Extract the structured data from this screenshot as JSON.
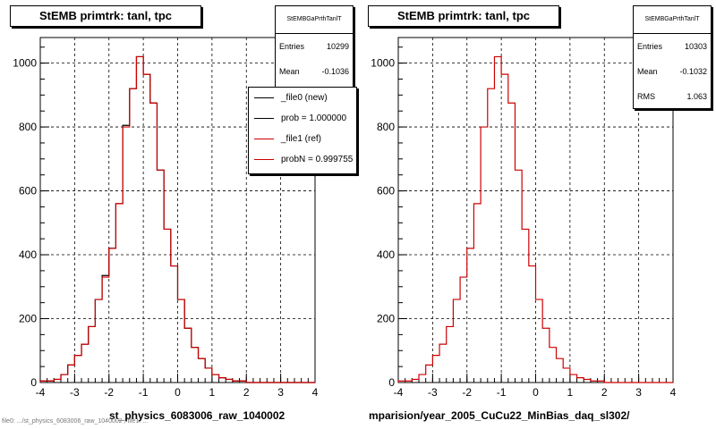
{
  "footer_note": "file0: .../st_physics_6083006_raw_1040002 ; file1: ...",
  "chart_data": [
    {
      "type": "histogram",
      "title": "StEMB primtrk: tanl, tpc",
      "xlabel": "st_physics_6083006_raw_1040002",
      "xlim": [
        -4,
        4
      ],
      "ylim": [
        0,
        1080
      ],
      "xticks": [
        "-4",
        "-3",
        "-2",
        "-1",
        "0",
        "1",
        "2",
        "3",
        "4"
      ],
      "yticks": [
        "0",
        "200",
        "400",
        "600",
        "800",
        "1000"
      ],
      "grid": true,
      "bin_width": 0.2,
      "bin_start": -4.0,
      "stats": {
        "name": "StEMBGaPrthTanlT",
        "rows": [
          {
            "label": "Entries",
            "value": "10299"
          },
          {
            "label": "Mean",
            "value": "-0.1036"
          }
        ]
      },
      "legend": [
        {
          "label": "_file0 (new)",
          "color": "#000000"
        },
        {
          "label": "prob = 1.000000",
          "color": "#000000"
        },
        {
          "label": "_file1 (ref)",
          "color": "#cc0000"
        },
        {
          "label": "probN = 0.999755",
          "color": "#cc0000"
        }
      ],
      "series": [
        {
          "name": "_file0 (new)",
          "color": "#000000",
          "values": [
            5,
            5,
            10,
            25,
            55,
            85,
            120,
            175,
            260,
            335,
            420,
            560,
            805,
            920,
            1020,
            965,
            875,
            665,
            480,
            365,
            260,
            170,
            110,
            75,
            45,
            25,
            15,
            10,
            5,
            5,
            0,
            0,
            0,
            0,
            0,
            0,
            0,
            0,
            0,
            0
          ]
        },
        {
          "name": "_file1 (ref)",
          "color": "#cc0000",
          "values": [
            5,
            5,
            10,
            25,
            55,
            85,
            120,
            175,
            260,
            330,
            420,
            560,
            800,
            920,
            1020,
            965,
            875,
            665,
            480,
            365,
            260,
            170,
            110,
            75,
            45,
            25,
            15,
            10,
            5,
            5,
            0,
            0,
            0,
            0,
            0,
            0,
            0,
            0,
            0,
            0
          ]
        }
      ]
    },
    {
      "type": "histogram",
      "title": "StEMB primtrk: tanl, tpc",
      "xlabel": "mparision/year_2005_CuCu22_MinBias_daq_sl302/",
      "xlim": [
        -4,
        4
      ],
      "ylim": [
        0,
        1080
      ],
      "xticks": [
        "-4",
        "-3",
        "-2",
        "-1",
        "0",
        "1",
        "2",
        "3",
        "4"
      ],
      "yticks": [
        "0",
        "200",
        "400",
        "600",
        "800",
        "1000"
      ],
      "grid": true,
      "bin_width": 0.2,
      "bin_start": -4.0,
      "stats": {
        "name": "StEMBGaPrthTanlT",
        "rows": [
          {
            "label": "Entries",
            "value": "10303"
          },
          {
            "label": "Mean",
            "value": "-0.1032"
          },
          {
            "label": "RMS",
            "value": "1.063"
          }
        ]
      },
      "legend": [],
      "series": [
        {
          "name": "",
          "color": "#cc0000",
          "values": [
            5,
            5,
            10,
            25,
            55,
            85,
            120,
            175,
            260,
            330,
            420,
            560,
            800,
            920,
            1020,
            965,
            875,
            665,
            480,
            365,
            260,
            170,
            110,
            75,
            45,
            25,
            15,
            10,
            5,
            5,
            0,
            0,
            0,
            0,
            0,
            0,
            0,
            0,
            0,
            0
          ]
        }
      ]
    }
  ]
}
